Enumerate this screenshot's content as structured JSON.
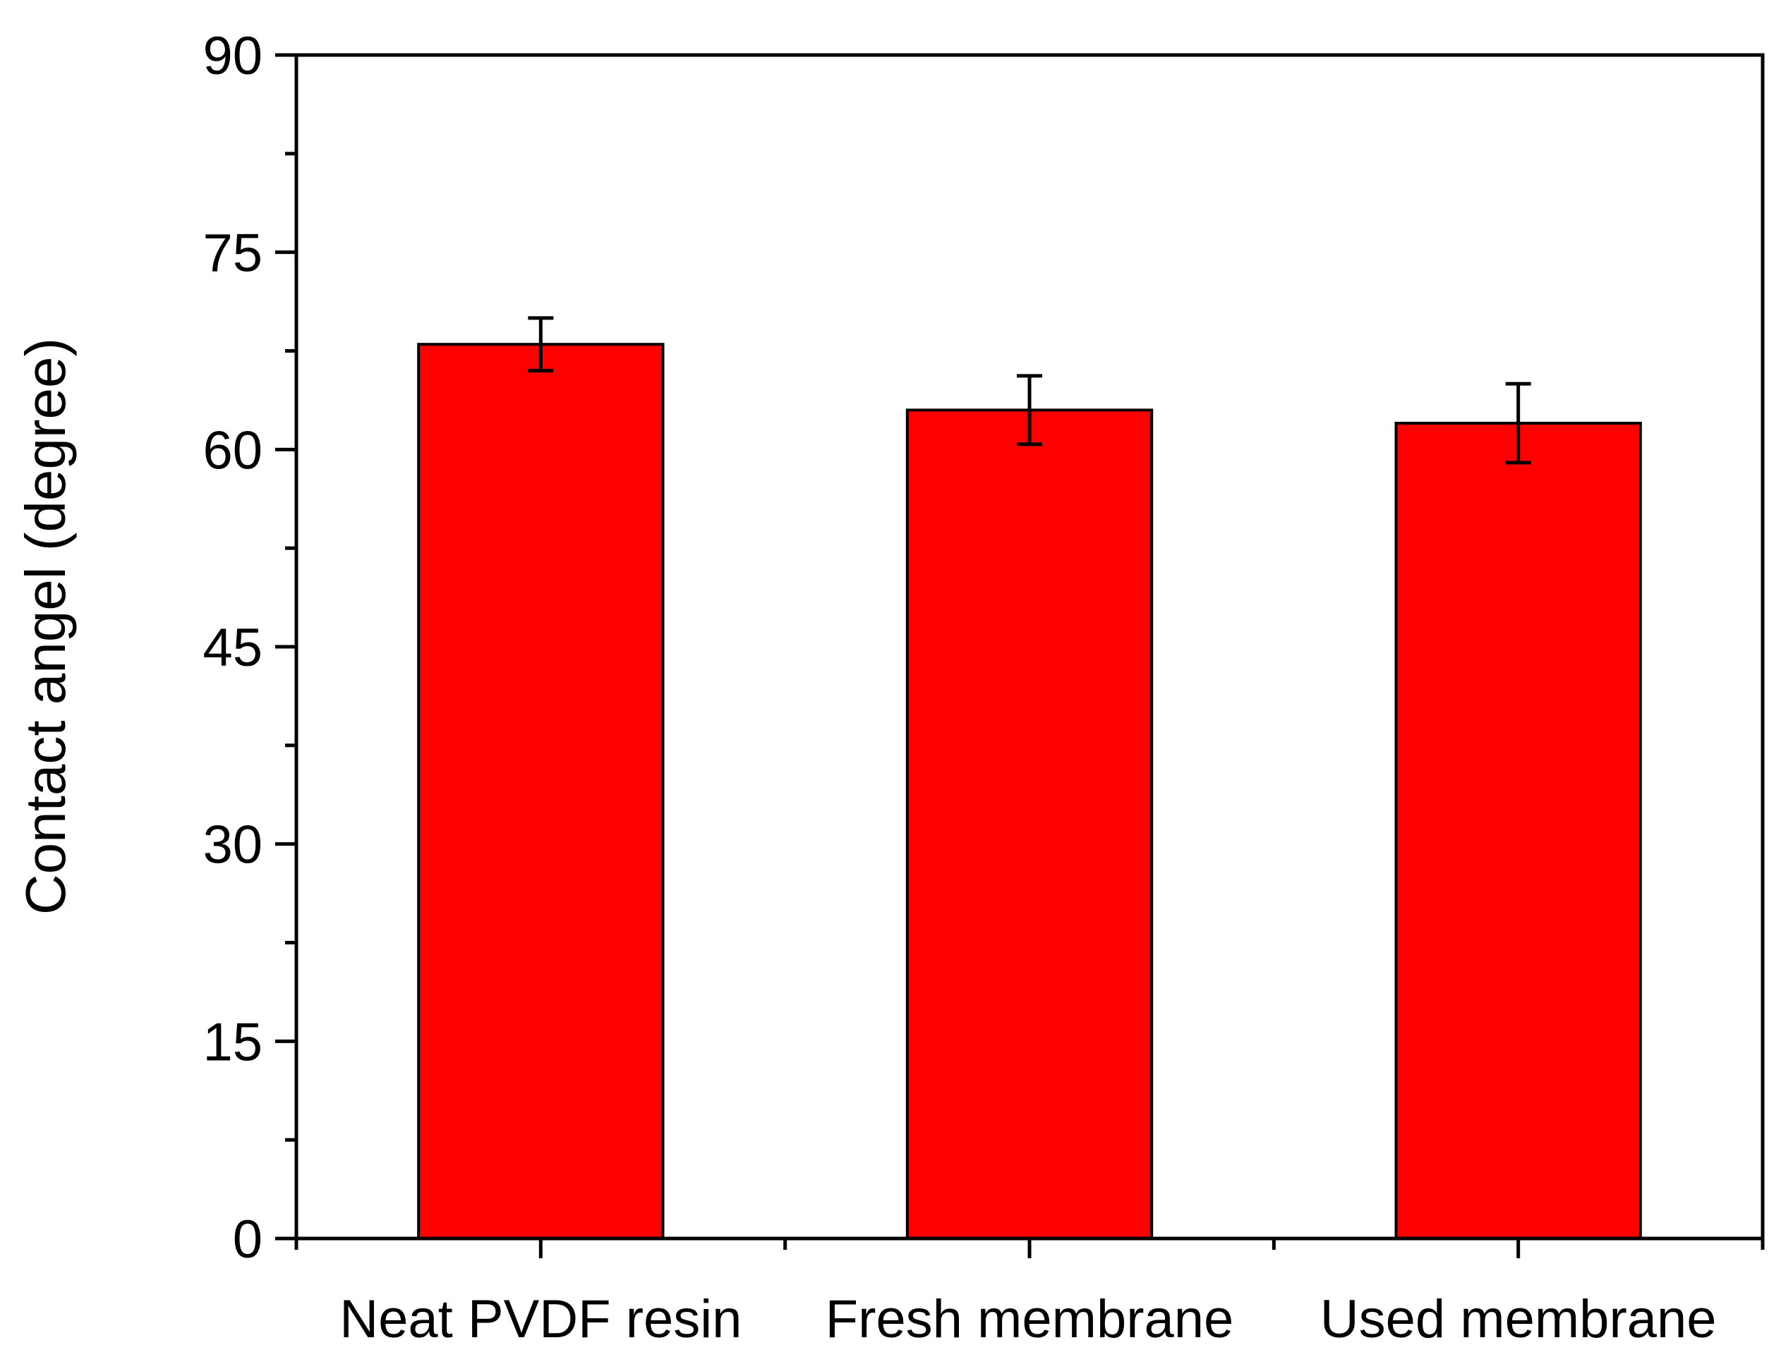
{
  "chart_data": {
    "type": "bar",
    "title": "",
    "xlabel": "",
    "ylabel": "Contact angel (degree)",
    "categories": [
      "Neat PVDF resin",
      "Fresh membrane",
      "Used membrane"
    ],
    "values": [
      68.0,
      63.0,
      62.0
    ],
    "errors": [
      2.0,
      2.6,
      3.0
    ],
    "ylim": [
      0,
      90
    ],
    "y_major_ticks": [
      "0",
      "15",
      "30",
      "45",
      "60",
      "75",
      "90"
    ],
    "y_minor_step": 7.5,
    "grid": false,
    "legend": "none",
    "bar_color": "#ff0000",
    "bar_edge_color": "#000000"
  }
}
